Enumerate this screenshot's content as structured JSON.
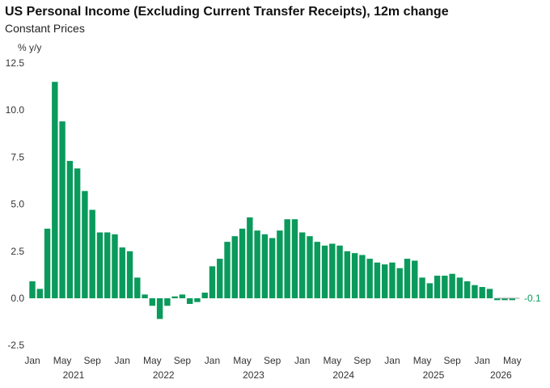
{
  "chart_data": {
    "type": "bar",
    "title": "US Personal Income (Excluding Current Transfer Receipts), 12m change",
    "subtitle": "Constant Prices",
    "ylabel": "% y/y",
    "ylim": [
      -2.5,
      12.5
    ],
    "yticks": [
      "12.5",
      "10.0",
      "7.5",
      "5.0",
      "2.5",
      "0.0",
      "-2.5"
    ],
    "ytick_values": [
      12.5,
      10.0,
      7.5,
      5.0,
      2.5,
      0.0,
      -2.5
    ],
    "xlim": [
      "Jan 2021",
      "Jun 2026"
    ],
    "month_ticks": [
      {
        "label": "Jan",
        "index": 0
      },
      {
        "label": "May",
        "index": 4
      },
      {
        "label": "Sep",
        "index": 8
      },
      {
        "label": "Jan",
        "index": 12
      },
      {
        "label": "May",
        "index": 16
      },
      {
        "label": "Sep",
        "index": 20
      },
      {
        "label": "Jan",
        "index": 24
      },
      {
        "label": "May",
        "index": 28
      },
      {
        "label": "Sep",
        "index": 32
      },
      {
        "label": "Jan",
        "index": 36
      },
      {
        "label": "May",
        "index": 40
      },
      {
        "label": "Sep",
        "index": 44
      },
      {
        "label": "Jan",
        "index": 48
      },
      {
        "label": "May",
        "index": 52
      },
      {
        "label": "Sep",
        "index": 56
      },
      {
        "label": "Jan",
        "index": 60
      },
      {
        "label": "May",
        "index": 64
      }
    ],
    "year_ticks": [
      {
        "label": "2021",
        "index": 5.5
      },
      {
        "label": "2022",
        "index": 17.5
      },
      {
        "label": "2023",
        "index": 29.5
      },
      {
        "label": "2024",
        "index": 41.5
      },
      {
        "label": "2025",
        "index": 53.5
      },
      {
        "label": "2026",
        "index": 62.5
      }
    ],
    "bar_color": "#0a9a5c",
    "series": [
      {
        "start": "2021-01",
        "values": [
          0.9,
          0.5,
          3.7,
          11.5,
          9.4,
          7.3,
          6.9,
          5.7,
          4.7,
          3.5,
          3.5,
          3.4,
          2.7,
          2.5,
          1.1,
          0.2,
          -0.4,
          -1.1,
          -0.4,
          0.1,
          0.2,
          -0.3,
          -0.2,
          0.3,
          1.7,
          2.1,
          3.0,
          3.3,
          3.7,
          4.3,
          3.6,
          3.4,
          3.2,
          3.6,
          4.2,
          4.2,
          3.5,
          3.3,
          3.0,
          2.8,
          2.9,
          2.8,
          2.5,
          2.4,
          2.3,
          2.1,
          1.9,
          1.8,
          1.9,
          1.6,
          2.1,
          2.0,
          1.1,
          0.8,
          1.2,
          1.2,
          1.3,
          1.1,
          0.9,
          0.7,
          0.6,
          0.5,
          -0.1,
          -0.1,
          -0.1
        ]
      }
    ],
    "end_label": "-0.1",
    "end_label_color": "#0a9a5c"
  }
}
